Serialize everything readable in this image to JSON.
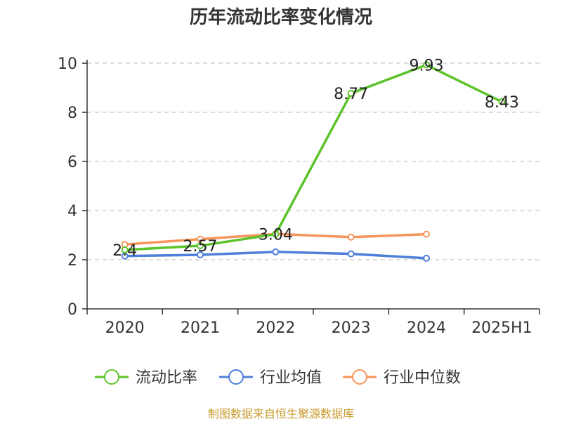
{
  "chart_data": {
    "type": "line",
    "title": "历年流动比率变化情况",
    "categories": [
      "2020",
      "2021",
      "2022",
      "2023",
      "2024",
      "2025H1"
    ],
    "y_ticks": [
      "0",
      "2",
      "4",
      "6",
      "8",
      "10"
    ],
    "ylim": [
      0,
      10
    ],
    "grid": true,
    "legend_position": "bottom",
    "series": [
      {
        "name": "流动比率",
        "color": "#5cc32a",
        "values": [
          2.4,
          2.57,
          3.04,
          8.77,
          9.93,
          8.43
        ],
        "labels": [
          "2.4",
          "2.57",
          "3.04",
          "8.77",
          "9.93",
          "8.43"
        ]
      },
      {
        "name": "行业均值",
        "color": "#4e7fdb",
        "values": [
          2.15,
          2.2,
          2.32,
          2.24,
          2.06,
          null
        ]
      },
      {
        "name": "行业中位数",
        "color": "#f5955c",
        "values": [
          2.62,
          2.84,
          3.05,
          2.92,
          3.04,
          null
        ]
      }
    ],
    "source": "制图数据来自恒生聚源数据库"
  }
}
